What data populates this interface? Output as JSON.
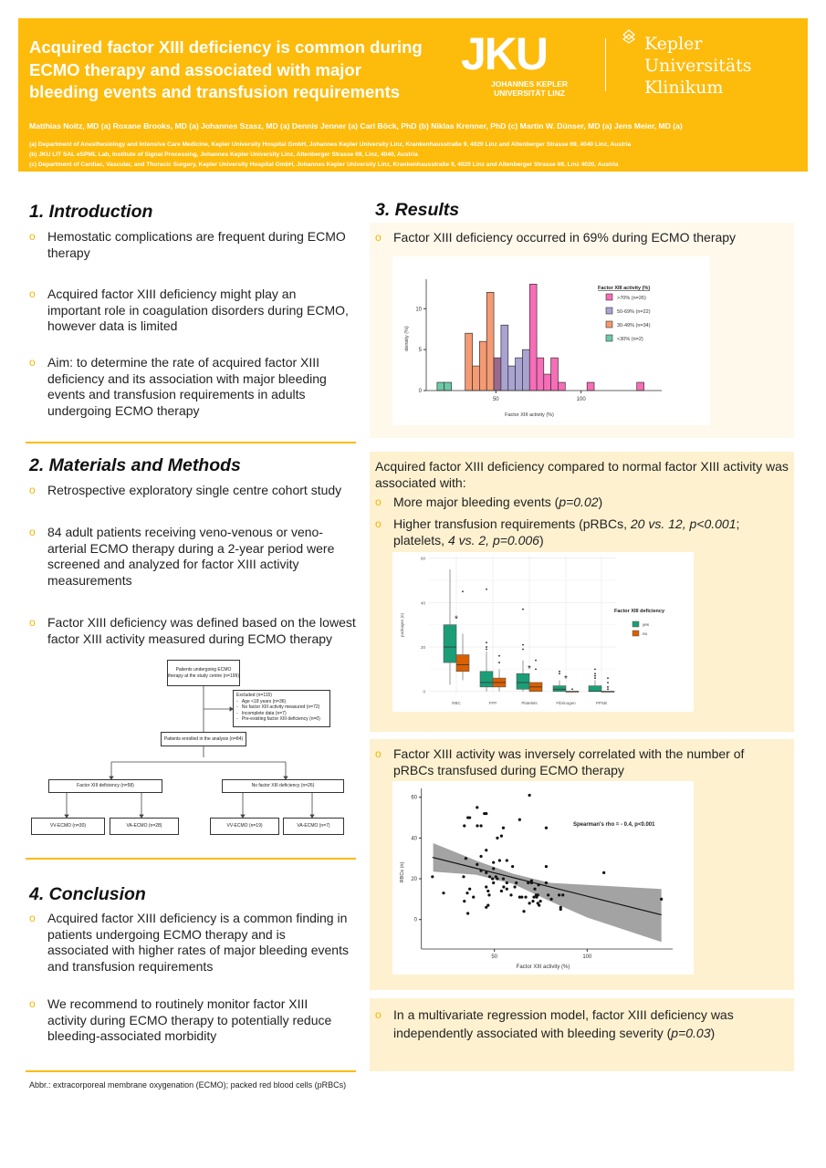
{
  "header": {
    "title_lines": [
      "Acquired factor XIII deficiency is common during",
      "ECMO therapy and associated with major",
      "bleeding events and transfusion requirements"
    ],
    "authors": "Matthias Noitz, MD (a) Roxane Brooks, MD (a) Johannes Szasz, MD (a) Dennis Jenner (a) Carl Böck, PhD (b) Niklas Krenner, PhD (c) Martin W. Dünser, MD (a) Jens Meier, MD (a)",
    "affiliations": [
      "(a) Department of Anesthesiology and Intensive Care Medicine, Kepler University Hospital GmbH, Johannes Kepler University Linz, Krankenhausstraße 9, 4020 Linz and Altenberger Strasse 69, 4040 Linz, Austria",
      "(b) JKU LIT SAL eSPML Lab, Institute of Signal Processing, Johannes Kepler University Linz, Altenberger Strasse 69, Linz, 4040, Austria",
      "(c) Department of Cardiac, Vascular, and Thoracic Surgery, Kepler University Hospital GmbH, Johannes Kepler University Linz, Krankenhausstraße 9, 4020 Linz and Altenberger Strasse 69, Linz 4020, Austria"
    ],
    "jku_logo": "JKU",
    "jku_sub": [
      "JOHANNES KEPLER",
      "UNIVERSITÄT LINZ"
    ],
    "kepler_logo": [
      "Kepler",
      "Universitäts",
      "Klinikum"
    ],
    "brand_color": "#FDBB0C"
  },
  "intro": {
    "heading": "1. Introduction",
    "bullets": [
      "Hemostatic complications are frequent during ECMO therapy",
      "Acquired factor XIII deficiency might play an important role in coagulation disorders during ECMO, however data is limited",
      "Aim: to determine the rate of acquired factor XIII deficiency and its association with major bleeding events and transfusion requirements in adults undergoing ECMO therapy"
    ]
  },
  "methods": {
    "heading": "2. Materials and Methods",
    "bullets": [
      "Retrospective exploratory single centre cohort study",
      "84 adult patients receiving veno-venous or veno-arterial ECMO therapy during a 2-year period were screened and analyzed for factor XIII activity measurements",
      "Factor XIII deficiency was defined based on the lowest factor XIII activity measured during ECMO therapy"
    ],
    "flowchart": {
      "top": "Patients undergoing ECMO therapy at the study centre (n=199)",
      "excluded_title": "Excluded (n=115)",
      "excluded_items": [
        "Age <18 years (n=36)",
        "No factor XIII activity measured (n=72)",
        "Incomplete data (n=7)",
        "Pre-existing factor XIII deficiency (n=0)"
      ],
      "enrolled": "Patients enrolled in the analysis (n=84)",
      "deficiency": "Factor XIII deficiency (n=58)",
      "no_deficiency": "No factor XIII deficiency (n=26)",
      "def_vv": "VV-ECMO (n=30)",
      "def_va": "VA-ECMO (n=28)",
      "nodef_vv": "VV-ECMO (n=19)",
      "nodef_va": "VA-ECMO (n=7)"
    }
  },
  "conclusion": {
    "heading": "4. Conclusion",
    "bullets": [
      "Acquired factor XIII deficiency is a common finding in patients undergoing ECMO therapy and is associated with higher rates of major bleeding events and transfusion requirements",
      "We recommend to routinely monitor factor XIII activity during ECMO therapy to potentially reduce bleeding-associated morbidity"
    ]
  },
  "abbr": "Abbr.: extracorporeal membrane oxygenation (ECMO); packed red blood cells (pRBCs)",
  "results": {
    "heading": "3. Results",
    "p1_bullet": "Factor XIII deficiency occurred in 69% during ECMO therapy",
    "p2_intro": "Acquired factor XIII deficiency compared to normal factor XIII activity was associated with:",
    "p2_b1": {
      "text": "More major bleeding events (",
      "italic": "p=0.02",
      "end": ")"
    },
    "p2_b2": {
      "t1": "Higher transfusion requirements (pRBCs, ",
      "i1": "20 vs. 12, p<0.001",
      "t2": ";",
      "t3": "platelets, ",
      "i2": "4 vs. 2, p=0.006",
      "t4": ")"
    },
    "p3_bullet": "Factor XIII activity was inversely correlated with the number of pRBCs transfused during ECMO therapy",
    "p4": {
      "text": "In a multivariate regression model, factor XIII deficiency was independently associated with bleeding severity (",
      "italic": "p=0.03",
      "end": ")"
    }
  },
  "chart_data": [
    {
      "type": "bar",
      "subtype": "histogram",
      "xlabel": "Factor XIII activity (%)",
      "ylabel": "density (%)",
      "xlim": [
        2,
        146
      ],
      "ylim": [
        0,
        14
      ],
      "xticks": [
        50,
        100
      ],
      "yticks": [
        0,
        5,
        10
      ],
      "grid": false,
      "legend_position": "top-right",
      "legend_title": "Factor XIII activity (%)",
      "legend": [
        {
          "name": ">70% (n=26)",
          "color": "#F76DB8"
        },
        {
          "name": "50-69% (n=22)",
          "color": "#A9A3D1"
        },
        {
          "name": "30-49% (n=34)",
          "color": "#F59A72"
        },
        {
          "name": "<30% (n=2)",
          "color": "#6CC9A8"
        }
      ],
      "overlap_color": "#9A6A8E",
      "bins": [
        {
          "start": 15.5,
          "end": 19.7,
          "value": 1,
          "group": "<30% (n=2)"
        },
        {
          "start": 19.7,
          "end": 23.9,
          "value": 1,
          "group": "<30% (n=2)"
        },
        {
          "start": 32.0,
          "end": 36.2,
          "value": 7,
          "group": "30-49% (n=34)"
        },
        {
          "start": 36.2,
          "end": 40.4,
          "value": 3,
          "group": "30-49% (n=34)"
        },
        {
          "start": 40.4,
          "end": 44.6,
          "value": 6,
          "group": "30-49% (n=34)"
        },
        {
          "start": 44.6,
          "end": 48.8,
          "value": 12,
          "group": "30-49% (n=34)"
        },
        {
          "start": 48.8,
          "end": 53.0,
          "value": 4,
          "group": "overlap"
        },
        {
          "start": 53.0,
          "end": 57.2,
          "value": 8,
          "group": "50-69% (n=22)"
        },
        {
          "start": 57.2,
          "end": 61.4,
          "value": 3,
          "group": "50-69% (n=22)"
        },
        {
          "start": 61.4,
          "end": 65.6,
          "value": 4,
          "group": "50-69% (n=22)"
        },
        {
          "start": 65.6,
          "end": 69.8,
          "value": 5,
          "group": "50-69% (n=22)"
        },
        {
          "start": 69.8,
          "end": 74.0,
          "value": 13,
          "group": ">70% (n=26)"
        },
        {
          "start": 74.0,
          "end": 78.1,
          "value": 4,
          "group": ">70% (n=26)"
        },
        {
          "start": 78.1,
          "end": 82.3,
          "value": 2,
          "group": ">70% (n=26)"
        },
        {
          "start": 82.3,
          "end": 86.5,
          "value": 4,
          "group": ">70% (n=26)"
        },
        {
          "start": 86.5,
          "end": 90.7,
          "value": 1,
          "group": ">70% (n=26)"
        },
        {
          "start": 103.5,
          "end": 107.7,
          "value": 1,
          "group": ">70% (n=26)"
        },
        {
          "start": 132.7,
          "end": 136.9,
          "value": 1,
          "group": ">70% (n=26)"
        }
      ]
    },
    {
      "type": "box",
      "xlabel": "",
      "ylabel": "packages (n)",
      "ylim": [
        0,
        60
      ],
      "yticks": [
        0,
        20,
        40,
        60
      ],
      "grid": true,
      "legend_position": "right",
      "legend_title": "Factor XIII deficiency",
      "legend": [
        {
          "name": "yes",
          "color": "#1B9E77"
        },
        {
          "name": "no",
          "color": "#D95F02"
        }
      ],
      "categories": [
        "RBC",
        "FFP",
        "Platelets",
        "Fibrinogen",
        "PPSB"
      ],
      "significance_marker": "*",
      "significant": [
        "RBC",
        "Platelets",
        "Fibrinogen"
      ],
      "series": [
        {
          "name": "yes",
          "boxes": [
            {
              "min": 3,
              "q1": 13,
              "median": 20,
              "q3": 30,
              "max": 55,
              "outliers": []
            },
            {
              "min": 0,
              "q1": 2,
              "median": 4,
              "q3": 9,
              "max": 18,
              "outliers": [
                19,
                20,
                22,
                46
              ]
            },
            {
              "min": 0,
              "q1": 1,
              "median": 4,
              "q3": 8,
              "max": 14,
              "outliers": [
                19,
                21,
                37
              ]
            },
            {
              "min": 0,
              "q1": 0,
              "median": 1,
              "q3": 2.5,
              "max": 5,
              "outliers": [
                8,
                9
              ]
            },
            {
              "min": 0,
              "q1": 0,
              "median": 0,
              "q3": 2.5,
              "max": 5,
              "outliers": [
                6,
                7,
                8,
                10
              ]
            }
          ]
        },
        {
          "name": "no",
          "boxes": [
            {
              "min": 5,
              "q1": 9,
              "median": 12,
              "q3": 16.5,
              "max": 26,
              "outliers": [
                45
              ]
            },
            {
              "min": 0,
              "q1": 2,
              "median": 4,
              "q3": 6,
              "max": 10,
              "outliers": [
                13,
                16
              ]
            },
            {
              "min": 0,
              "q1": 0,
              "median": 2,
              "q3": 4,
              "max": 4,
              "outliers": [
                10,
                14
              ]
            },
            {
              "min": 0,
              "q1": 0,
              "median": 0,
              "q3": 0,
              "max": 0,
              "outliers": [
                1
              ]
            },
            {
              "min": 0,
              "q1": 0,
              "median": 0,
              "q3": 0,
              "max": 0,
              "outliers": [
                1,
                2,
                4,
                6
              ]
            }
          ]
        }
      ]
    },
    {
      "type": "scatter",
      "xlabel": "Factor XIII activity (%)",
      "ylabel": "RBCs (n)",
      "xlim": [
        13,
        143
      ],
      "ylim": [
        -15,
        65
      ],
      "xticks": [
        50,
        100
      ],
      "yticks": [
        0,
        20,
        40,
        60
      ],
      "grid": false,
      "annotation": "Spearman's rho  = - 0.4, p<0.001",
      "regression_line": [
        [
          16.6,
          30.5
        ],
        [
          140,
          2.3
        ]
      ],
      "confidence_band": [
        [
          17,
          23.5,
          37.5
        ],
        [
          40,
          22,
          29
        ],
        [
          60,
          17.5,
          22.5
        ],
        [
          80,
          9,
          18
        ],
        [
          100,
          1,
          17
        ],
        [
          120,
          -5,
          16
        ],
        [
          140,
          -11,
          15
        ]
      ],
      "points": [
        [
          16.6,
          21
        ],
        [
          22.6,
          13
        ],
        [
          33.4,
          21
        ],
        [
          33.8,
          9
        ],
        [
          33.8,
          46
        ],
        [
          34.6,
          30
        ],
        [
          35.4,
          13
        ],
        [
          35.7,
          3
        ],
        [
          35.7,
          50
        ],
        [
          36.7,
          50
        ],
        [
          36.7,
          15
        ],
        [
          38.7,
          11
        ],
        [
          40.7,
          55
        ],
        [
          40.7,
          27
        ],
        [
          40.8,
          46
        ],
        [
          42.8,
          46
        ],
        [
          42.8,
          31
        ],
        [
          42.8,
          24
        ],
        [
          44.6,
          52
        ],
        [
          45.6,
          52
        ],
        [
          45.6,
          34
        ],
        [
          45.6,
          23
        ],
        [
          45.6,
          16
        ],
        [
          45.6,
          6
        ],
        [
          46.6,
          7
        ],
        [
          46.6,
          14
        ],
        [
          47.2,
          12
        ],
        [
          47.5,
          21
        ],
        [
          49,
          20
        ],
        [
          49.5,
          28
        ],
        [
          49.5,
          25
        ],
        [
          49.5,
          18
        ],
        [
          50.8,
          21
        ],
        [
          51.6,
          20
        ],
        [
          51.6,
          40
        ],
        [
          52.8,
          29
        ],
        [
          53.8,
          41
        ],
        [
          53.8,
          14
        ],
        [
          54.8,
          45
        ],
        [
          54.8,
          20
        ],
        [
          55,
          16
        ],
        [
          56.7,
          29
        ],
        [
          56.7,
          18
        ],
        [
          56.7,
          15
        ],
        [
          59,
          12
        ],
        [
          59.8,
          26
        ],
        [
          61,
          16
        ],
        [
          61.8,
          18
        ],
        [
          63.6,
          11
        ],
        [
          63.6,
          49
        ],
        [
          64.8,
          11
        ],
        [
          65.9,
          4
        ],
        [
          66.9,
          11
        ],
        [
          68.2,
          18
        ],
        [
          68.9,
          61
        ],
        [
          68.9,
          8
        ],
        [
          70,
          19
        ],
        [
          70,
          18
        ],
        [
          70.8,
          9
        ],
        [
          71.3,
          11
        ],
        [
          71.8,
          15
        ],
        [
          72.5,
          12
        ],
        [
          72.8,
          11
        ],
        [
          73.4,
          12
        ],
        [
          73.4,
          8
        ],
        [
          73.8,
          17
        ],
        [
          74.1,
          7
        ],
        [
          74.8,
          9
        ],
        [
          77.9,
          45
        ],
        [
          77.9,
          26
        ],
        [
          77.9,
          18
        ],
        [
          79,
          12
        ],
        [
          80.7,
          10
        ],
        [
          84.9,
          12
        ],
        [
          85.7,
          6
        ],
        [
          85.7,
          5
        ],
        [
          86.9,
          12
        ],
        [
          109,
          23
        ],
        [
          140,
          10
        ]
      ]
    }
  ]
}
